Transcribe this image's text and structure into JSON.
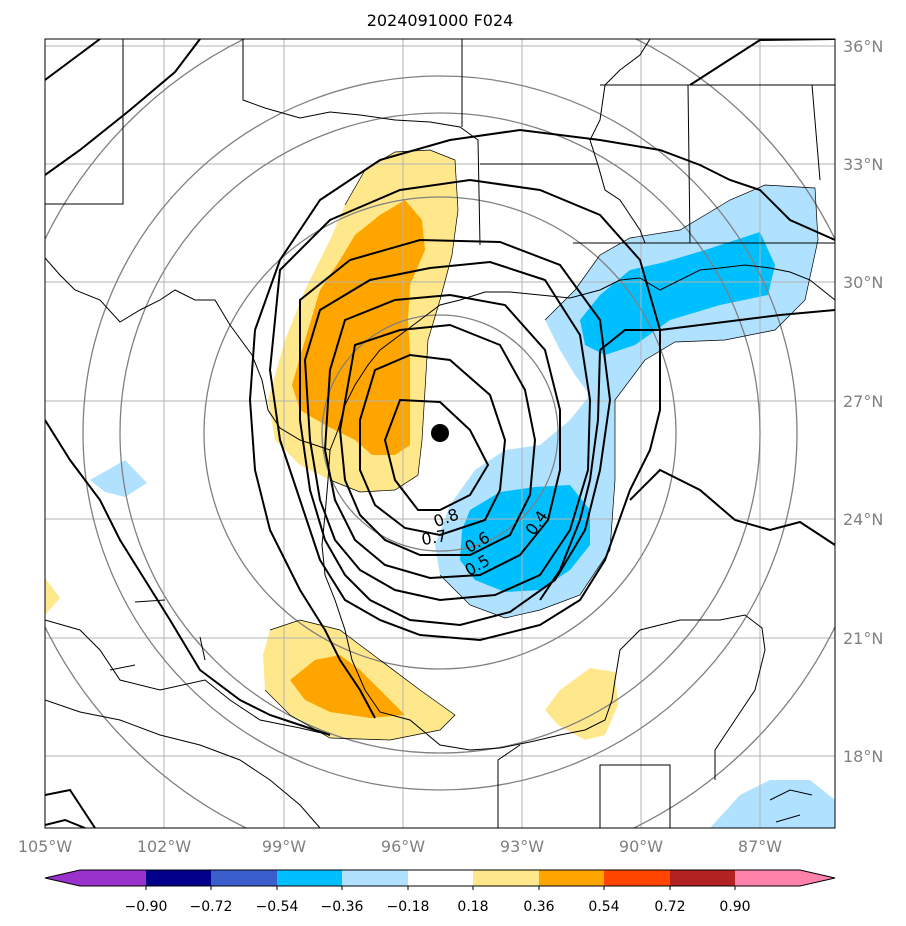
{
  "title": "2024091000 F024",
  "lon_labels": [
    "105°W",
    "102°W",
    "99°W",
    "96°W",
    "93°W",
    "90°W",
    "87°W"
  ],
  "lat_labels": [
    "36°N",
    "33°N",
    "30°N",
    "27°N",
    "24°N",
    "21°N",
    "18°N"
  ],
  "colorbar": {
    "tick_labels": [
      "−0.90",
      "−0.72",
      "−0.54",
      "−0.36",
      "−0.18",
      "0.18",
      "0.36",
      "0.54",
      "0.72",
      "0.90"
    ],
    "colors": [
      "#9932cc",
      "#00008b",
      "#3a5fcd",
      "#00bfff",
      "#b0e2ff",
      "#ffffff",
      "#ffe88c",
      "#ffa500",
      "#ff4500",
      "#b22222",
      "#ff82ab"
    ]
  },
  "contour_labels": [
    "0.8",
    "0.7",
    "0.6",
    "0.5",
    "0.4"
  ],
  "storm_center": {
    "lon": -95.0,
    "lat": 26.2
  },
  "colors": {
    "grid": "#b3b3b3",
    "range_rings": "#808080",
    "contours": "#000000",
    "pos_light": "#ffe88c",
    "pos_dark": "#ffa500",
    "neg_light": "#b0e2ff",
    "neg_dark": "#00bfff"
  }
}
